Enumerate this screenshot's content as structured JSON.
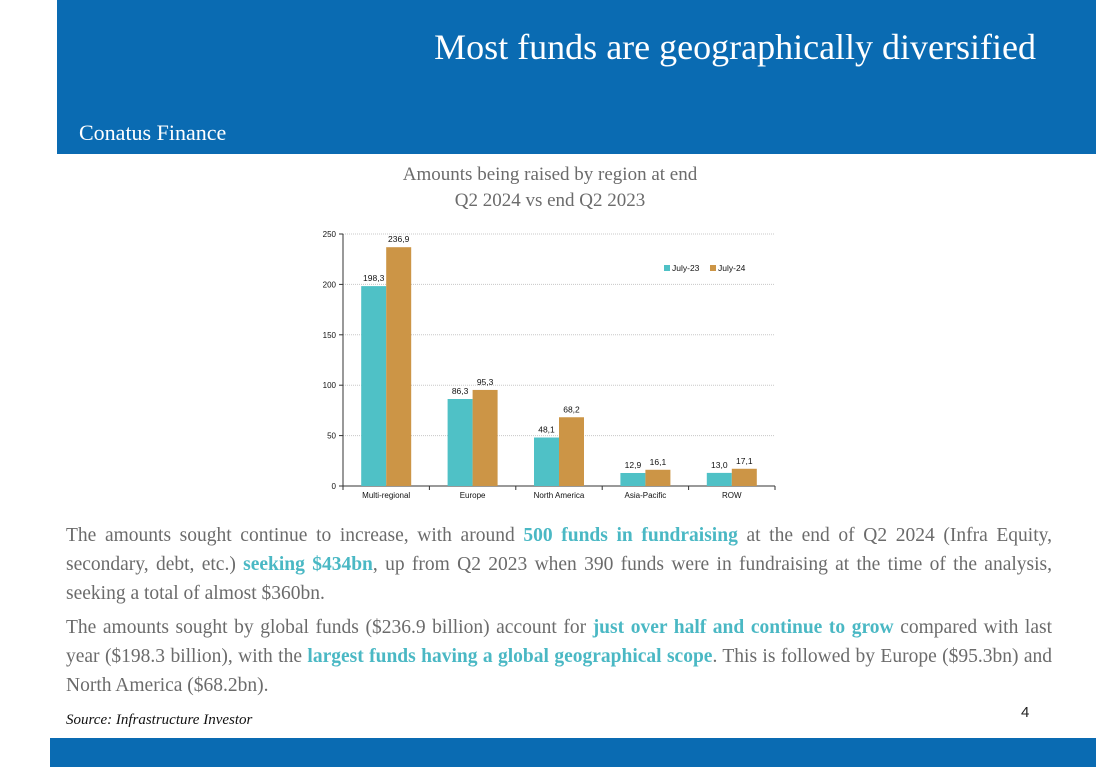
{
  "header": {
    "title": "Most funds are geographically diversified",
    "company": "Conatus Finance"
  },
  "chart_title": {
    "line1": "Amounts being raised by region at end",
    "line2": "Q2 2024 vs end Q2 2023"
  },
  "chart_data": {
    "type": "bar",
    "categories": [
      "Multi-regional",
      "Europe",
      "North America",
      "Asia-Pacific",
      "ROW"
    ],
    "series": [
      {
        "name": "July-23",
        "values": [
          198.3,
          86.3,
          48.1,
          12.9,
          13.0
        ],
        "labels": [
          "198,3",
          "86,3",
          "48,1",
          "12,9",
          "13,0"
        ],
        "color": "#4fc1c6"
      },
      {
        "name": "July-24",
        "values": [
          236.9,
          95.3,
          68.2,
          16.1,
          17.1
        ],
        "labels": [
          "236,9",
          "95,3",
          "68,2",
          "16,1",
          "17,1"
        ],
        "color": "#cc9546"
      }
    ],
    "ylim": [
      0,
      250
    ],
    "yticks": [
      0,
      50,
      100,
      150,
      200,
      250
    ],
    "legend_position": "top-right",
    "grid": true
  },
  "body": {
    "p1": [
      {
        "text": "The amounts sought continue to increase, with around ",
        "hl": false
      },
      {
        "text": "500 funds in fundraising",
        "hl": true
      },
      {
        "text": " at the end of Q2 2024 (Infra Equity, secondary, debt, etc.) ",
        "hl": false
      },
      {
        "text": "seeking $434bn",
        "hl": true
      },
      {
        "text": ", up from Q2 2023 when 390 funds were in fundraising at the time of the analysis, seeking a total of almost $360bn.",
        "hl": false
      }
    ],
    "p2": [
      {
        "text": "The amounts sought by global funds ($236.9 billion) account for ",
        "hl": false
      },
      {
        "text": "just over half and continue to grow",
        "hl": true
      },
      {
        "text": " compared with last year ($198.3 billion), with the ",
        "hl": false
      },
      {
        "text": "largest funds having a global geographical scope",
        "hl": true
      },
      {
        "text": ". This is followed by Europe ($95.3bn) and North America ($68.2bn).",
        "hl": false
      }
    ]
  },
  "source": "Source: Infrastructure Investor",
  "page_number": "4",
  "colors": {
    "brand_blue": "#0a6bb2",
    "highlight": "#4ab8c4"
  }
}
